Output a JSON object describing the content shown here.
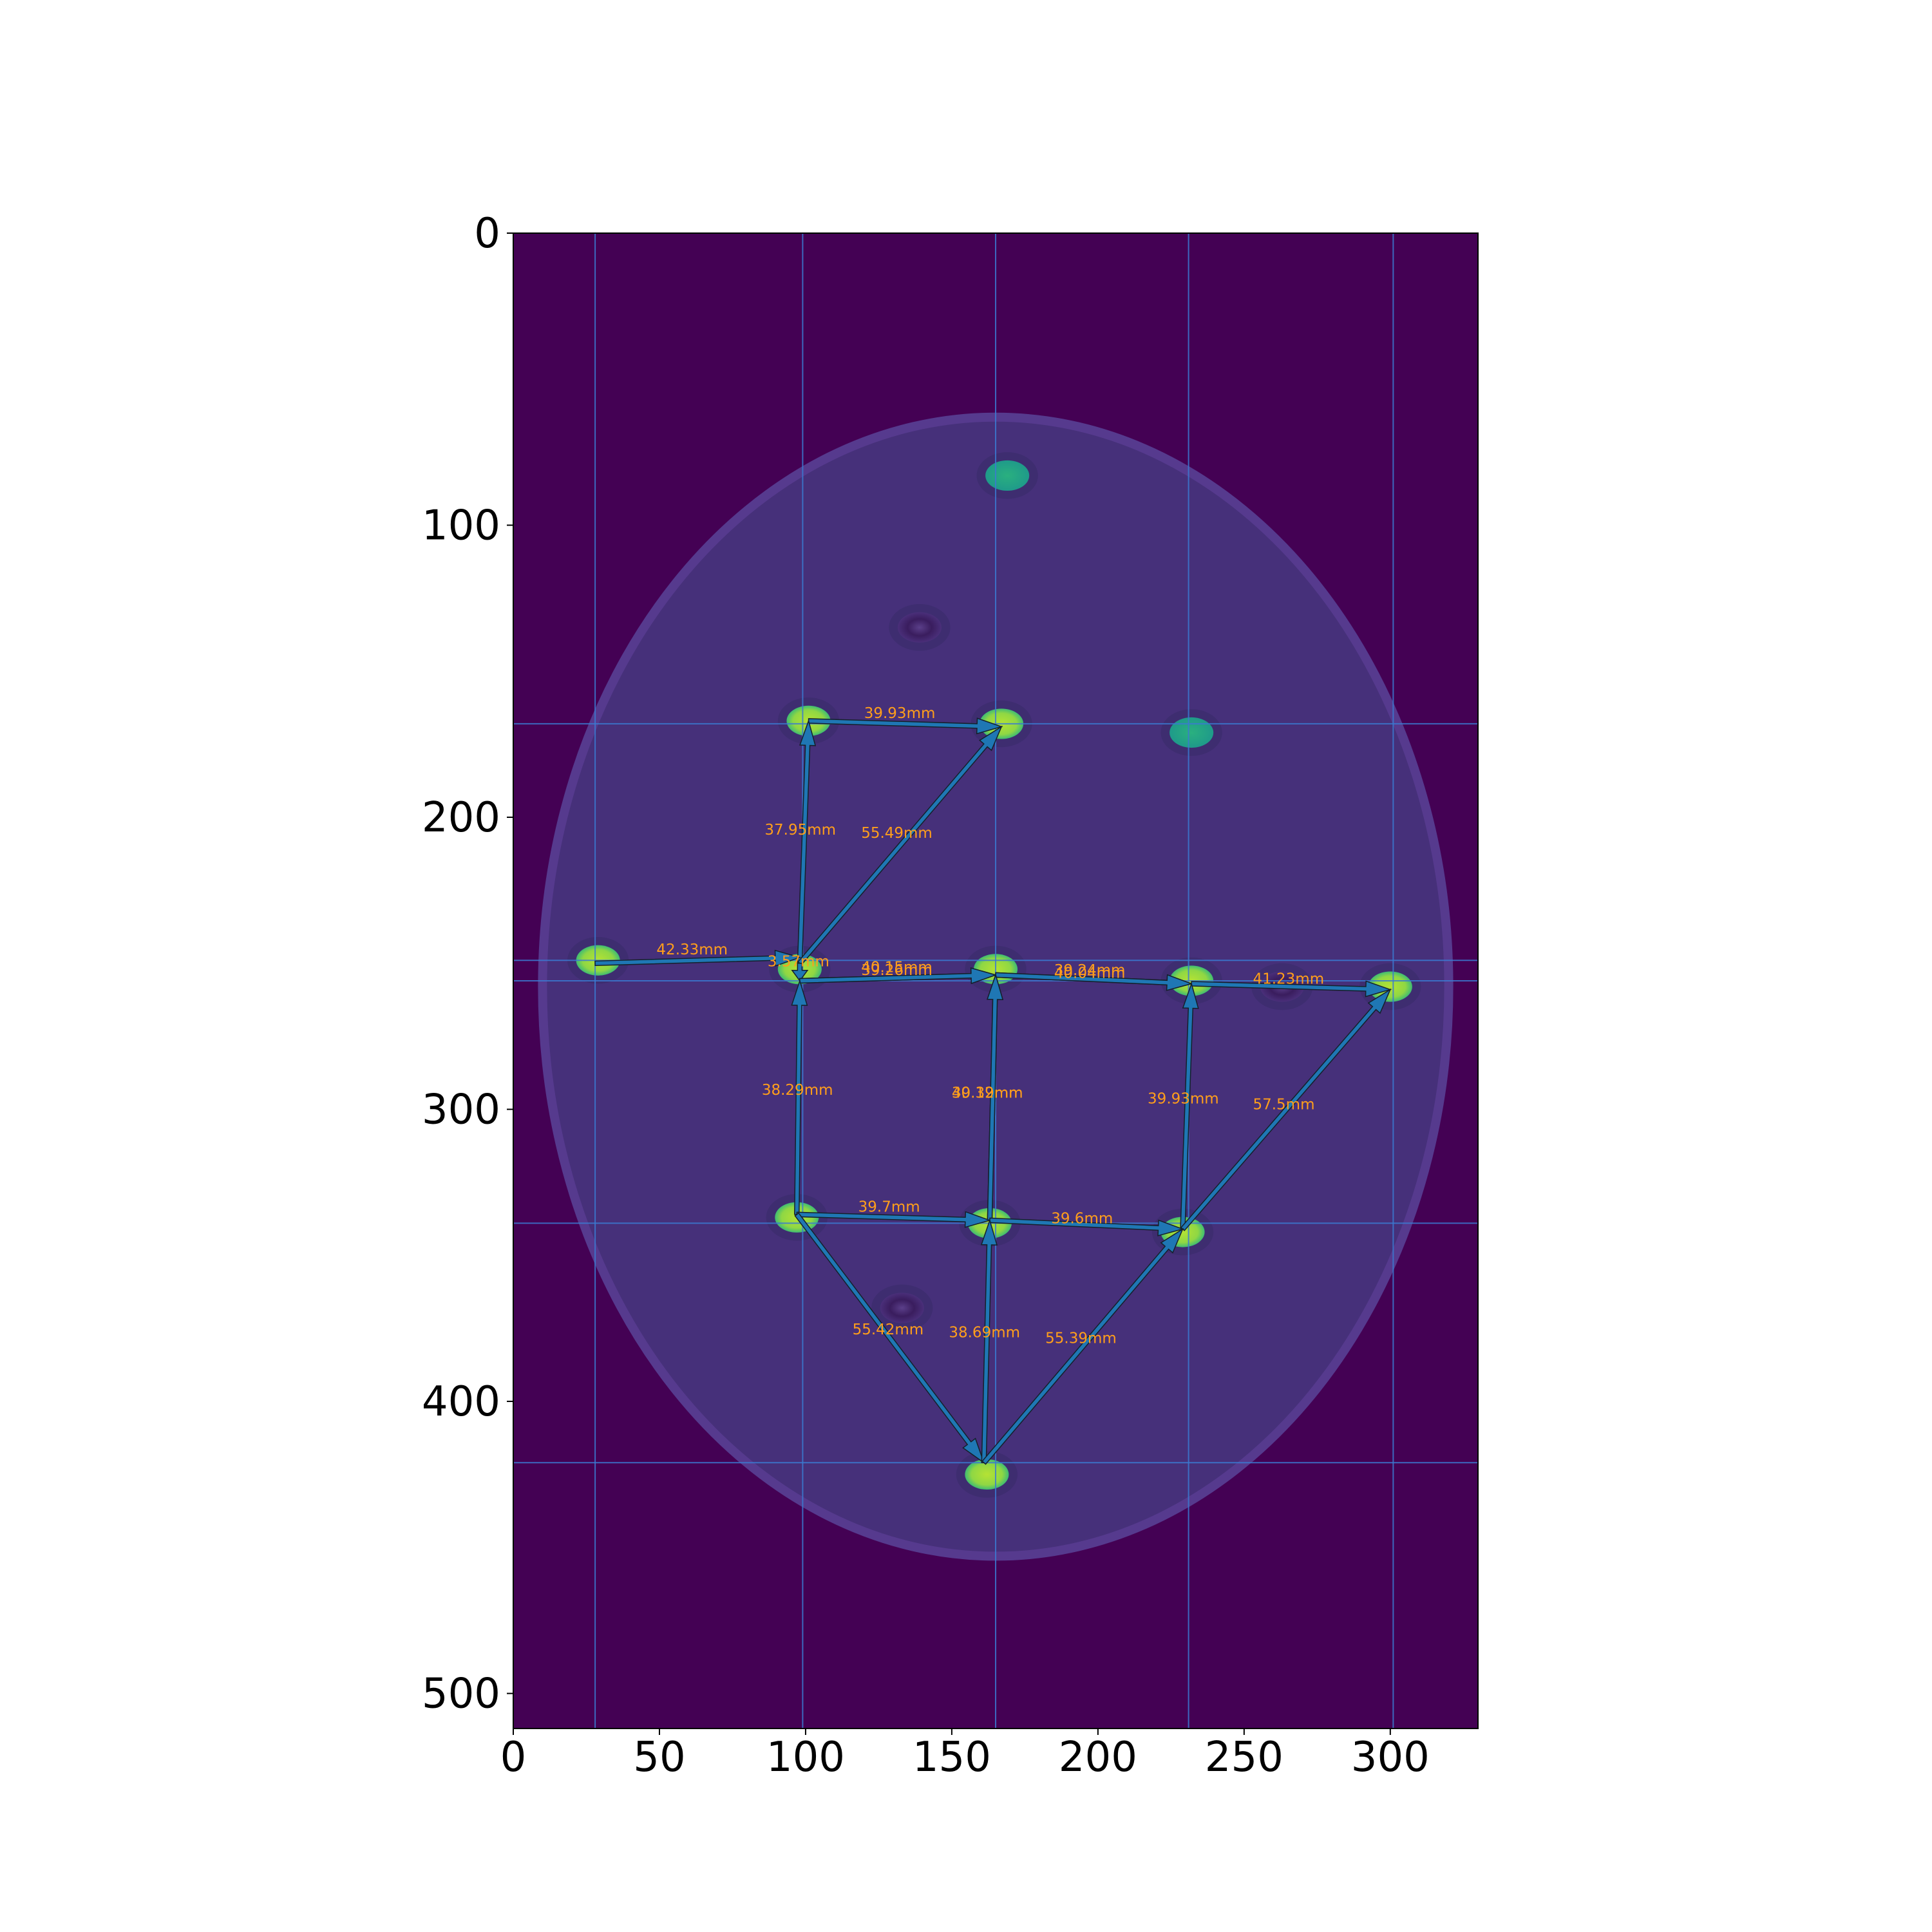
{
  "chart_data": {
    "type": "scatter",
    "title": "",
    "xlabel": "",
    "ylabel": "",
    "xlim": [
      0,
      330
    ],
    "ylim": [
      512,
      0
    ],
    "grid": false,
    "x_ticks": [
      "0",
      "50",
      "100",
      "150",
      "200",
      "250",
      "300"
    ],
    "y_ticks": [
      "0",
      "100",
      "200",
      "300",
      "400",
      "500"
    ],
    "colors": {
      "background": "#440154",
      "phantom": "#46307a",
      "phantom_rim": "#563a8e",
      "marker_bright": "#a8e033",
      "marker_teal": "#21a585",
      "marker_dark": "#3a1d5e",
      "arrow": "#1f77b4",
      "guide_line": "#3b7ad1",
      "label": "#ff9e1b"
    },
    "phantom_ellipse": {
      "cx": 165,
      "cy": 258,
      "rx": 155,
      "ry": 195
    },
    "markers": [
      {
        "x": 169,
        "y": 83,
        "kind": "teal"
      },
      {
        "x": 139,
        "y": 135,
        "kind": "dark"
      },
      {
        "x": 101,
        "y": 167,
        "kind": "bright"
      },
      {
        "x": 167,
        "y": 168,
        "kind": "bright"
      },
      {
        "x": 232,
        "y": 171,
        "kind": "teal"
      },
      {
        "x": 29,
        "y": 249,
        "kind": "bright"
      },
      {
        "x": 98,
        "y": 252,
        "kind": "bright"
      },
      {
        "x": 165,
        "y": 252,
        "kind": "bright"
      },
      {
        "x": 232,
        "y": 256,
        "kind": "bright"
      },
      {
        "x": 263,
        "y": 258,
        "kind": "dark"
      },
      {
        "x": 300,
        "y": 258,
        "kind": "bright"
      },
      {
        "x": 97,
        "y": 337,
        "kind": "bright"
      },
      {
        "x": 163,
        "y": 339,
        "kind": "bright"
      },
      {
        "x": 229,
        "y": 342,
        "kind": "bright"
      },
      {
        "x": 133,
        "y": 368,
        "kind": "dark"
      },
      {
        "x": 162,
        "y": 425,
        "kind": "bright"
      }
    ],
    "guide_lines": {
      "vertical_x": [
        28,
        99,
        165,
        231,
        301
      ],
      "horizontal_y": [
        168,
        249,
        256,
        339,
        421
      ]
    },
    "arrows": [
      {
        "from": [
          101,
          167
        ],
        "to": [
          167,
          169
        ],
        "label": "39.93mm",
        "lx": 120,
        "ly": 166
      },
      {
        "from": [
          98,
          250
        ],
        "to": [
          101,
          167
        ],
        "label": "37.95mm",
        "lx": 86,
        "ly": 206
      },
      {
        "from": [
          98,
          250
        ],
        "to": [
          167,
          169
        ],
        "label": "55.49mm",
        "lx": 119,
        "ly": 207
      },
      {
        "from": [
          28,
          250
        ],
        "to": [
          98,
          248
        ],
        "label": "42.33mm",
        "lx": 49,
        "ly": 247
      },
      {
        "from": [
          98,
          250
        ],
        "to": [
          98,
          256
        ],
        "label": "3.57mm",
        "lx": 87,
        "ly": 251
      },
      {
        "from": [
          98,
          256
        ],
        "to": [
          165,
          254
        ],
        "label": "39.26mm",
        "lx": 119,
        "ly": 254
      },
      {
        "from": [
          98,
          256
        ],
        "to": [
          165,
          254
        ],
        "label": "40.15mm",
        "lx": 119,
        "ly": 253
      },
      {
        "from": [
          165,
          254
        ],
        "to": [
          232,
          257
        ],
        "label": "39.24mm",
        "lx": 185,
        "ly": 254
      },
      {
        "from": [
          165,
          254
        ],
        "to": [
          232,
          257
        ],
        "label": "40.04mm",
        "lx": 185,
        "ly": 255
      },
      {
        "from": [
          232,
          257
        ],
        "to": [
          300,
          259
        ],
        "label": "41.23mm",
        "lx": 253,
        "ly": 257
      },
      {
        "from": [
          97,
          336
        ],
        "to": [
          98,
          256
        ],
        "label": "38.29mm",
        "lx": 85,
        "ly": 295
      },
      {
        "from": [
          163,
          338
        ],
        "to": [
          165,
          254
        ],
        "label": "39.39mm",
        "lx": 150,
        "ly": 296
      },
      {
        "from": [
          163,
          338
        ],
        "to": [
          165,
          254
        ],
        "label": "40.12mm",
        "lx": 150,
        "ly": 296
      },
      {
        "from": [
          229,
          341
        ],
        "to": [
          232,
          257
        ],
        "label": "39.93mm",
        "lx": 217,
        "ly": 298
      },
      {
        "from": [
          229,
          341
        ],
        "to": [
          300,
          259
        ],
        "label": "57.5mm",
        "lx": 253,
        "ly": 300
      },
      {
        "from": [
          97,
          336
        ],
        "to": [
          163,
          338
        ],
        "label": "39.7mm",
        "lx": 118,
        "ly": 335
      },
      {
        "from": [
          163,
          338
        ],
        "to": [
          229,
          341
        ],
        "label": "39.6mm",
        "lx": 184,
        "ly": 339
      },
      {
        "from": [
          97,
          336
        ],
        "to": [
          161,
          421
        ],
        "label": "55.42mm",
        "lx": 116,
        "ly": 377
      },
      {
        "from": [
          161,
          421
        ],
        "to": [
          163,
          338
        ],
        "label": "38.69mm",
        "lx": 149,
        "ly": 378
      },
      {
        "from": [
          161,
          421
        ],
        "to": [
          229,
          341
        ],
        "label": "55.39mm",
        "lx": 182,
        "ly": 380
      }
    ]
  }
}
